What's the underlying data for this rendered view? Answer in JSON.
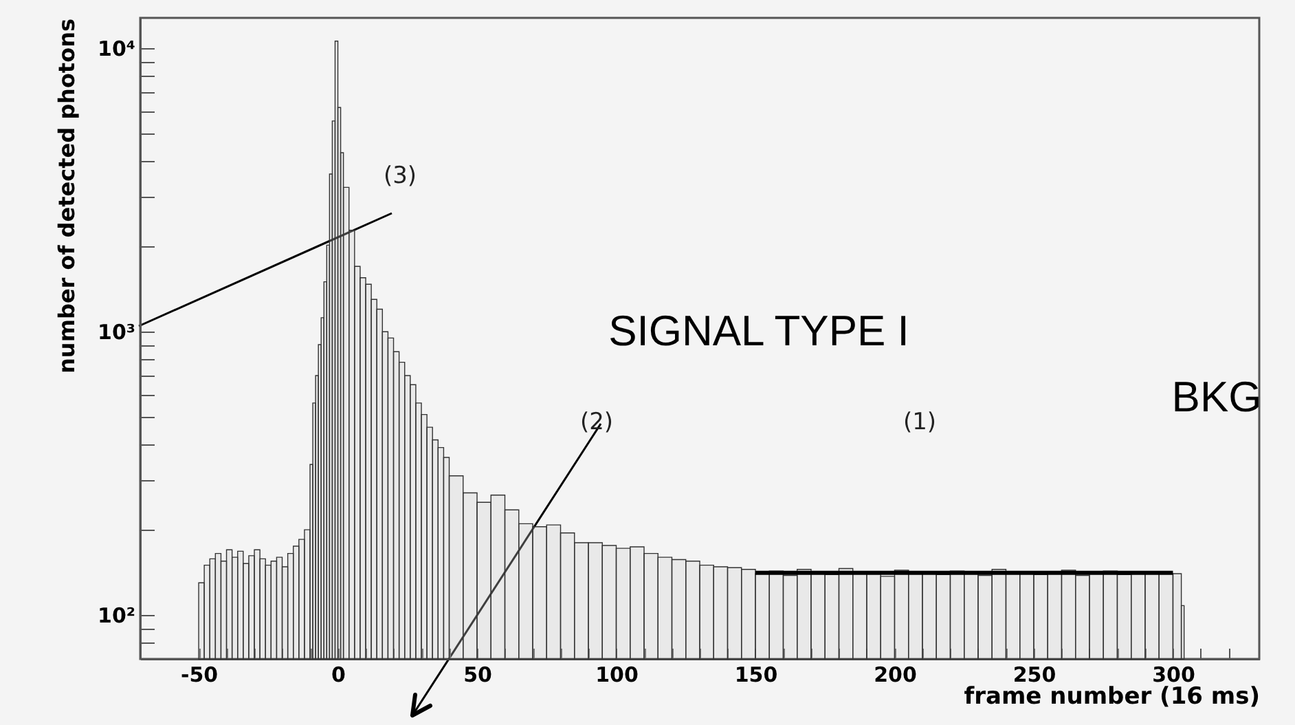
{
  "chart_data": {
    "type": "histogram",
    "xlabel": "frame number (16 ms)",
    "ylabel": "number of detected photons",
    "log": "y",
    "xlim": [
      -71,
      331
    ],
    "ylim": [
      70,
      12800
    ],
    "xticks": [
      -50,
      {
        "value": -40,
        "label": null
      },
      {
        "value": -30,
        "label": null
      },
      {
        "value": -20,
        "label": null
      },
      {
        "value": -10,
        "label": null
      },
      0,
      {
        "value": 10,
        "label": null
      },
      {
        "value": 20,
        "label": null
      },
      {
        "value": 30,
        "label": null
      },
      {
        "value": 40,
        "label": null
      },
      50,
      {
        "value": 60,
        "label": null
      },
      {
        "value": 70,
        "label": null
      },
      {
        "value": 80,
        "label": null
      },
      {
        "value": 90,
        "label": null
      },
      100,
      {
        "value": 110,
        "label": null
      },
      {
        "value": 120,
        "label": null
      },
      {
        "value": 130,
        "label": null
      },
      {
        "value": 140,
        "label": null
      },
      150,
      {
        "value": 160,
        "label": null
      },
      {
        "value": 170,
        "label": null
      },
      {
        "value": 180,
        "label": null
      },
      {
        "value": 190,
        "label": null
      },
      200,
      {
        "value": 210,
        "label": null
      },
      {
        "value": 220,
        "label": null
      },
      {
        "value": 230,
        "label": null
      },
      {
        "value": 240,
        "label": null
      },
      250,
      {
        "value": 260,
        "label": null
      },
      {
        "value": 270,
        "label": null
      },
      {
        "value": 280,
        "label": null
      },
      {
        "value": 290,
        "label": null
      },
      300,
      {
        "value": 310,
        "label": null
      },
      {
        "value": 320,
        "label": null
      }
    ],
    "yticks": [
      {
        "value": 80,
        "label": null
      },
      {
        "value": 90,
        "label": null
      },
      {
        "value": 100,
        "label": "10²"
      },
      {
        "value": 200,
        "label": null
      },
      {
        "value": 300,
        "label": null
      },
      {
        "value": 400,
        "label": null
      },
      {
        "value": 500,
        "label": null
      },
      {
        "value": 600,
        "label": null
      },
      {
        "value": 700,
        "label": null
      },
      {
        "value": 800,
        "label": null
      },
      {
        "value": 900,
        "label": null
      },
      {
        "value": 1000,
        "label": "10³"
      },
      {
        "value": 2000,
        "label": null
      },
      {
        "value": 3000,
        "label": null
      },
      {
        "value": 4000,
        "label": null
      },
      {
        "value": 5000,
        "label": null
      },
      {
        "value": 6000,
        "label": null
      },
      {
        "value": 7000,
        "label": null
      },
      {
        "value": 8000,
        "label": null
      },
      {
        "value": 9000,
        "label": null
      },
      {
        "value": 10000,
        "label": "10⁴"
      }
    ],
    "series": [
      {
        "type": "histogram",
        "color": "#333333",
        "bins": [
          -50,
          -48,
          -46,
          -44,
          -42,
          -40,
          -38,
          -36,
          -34,
          -32,
          -30,
          -28,
          -26,
          -24,
          -22,
          -20,
          -18,
          -16,
          -14,
          -12,
          -10,
          -9,
          -8,
          -7,
          -6,
          -5,
          -4,
          -3,
          -2,
          -1,
          0,
          1,
          2,
          4,
          6,
          8,
          10,
          12,
          14,
          16,
          18,
          20,
          22,
          24,
          26,
          28,
          30,
          32,
          34,
          36,
          38,
          40,
          45,
          50,
          55,
          60,
          65,
          70,
          75,
          80,
          85,
          90,
          95,
          100,
          105,
          110,
          115,
          120,
          125,
          130,
          135,
          140,
          145,
          150,
          155,
          160,
          165,
          170,
          175,
          180,
          185,
          190,
          195,
          200,
          205,
          210,
          215,
          220,
          225,
          230,
          235,
          240,
          245,
          250,
          255,
          260,
          265,
          270,
          275,
          280,
          285,
          290,
          295,
          300,
          303,
          304
        ],
        "values": [
          130,
          150,
          158,
          165,
          155,
          170,
          160,
          168,
          152,
          162,
          170,
          158,
          150,
          155,
          160,
          148,
          165,
          175,
          185,
          200,
          340,
          560,
          700,
          900,
          1120,
          1500,
          2020,
          3600,
          5540,
          10600,
          6180,
          4280,
          3230,
          2280,
          1700,
          1550,
          1470,
          1300,
          1200,
          1000,
          950,
          850,
          780,
          700,
          650,
          560,
          510,
          460,
          415,
          390,
          360,
          310,
          270,
          250,
          265,
          235,
          210,
          205,
          208,
          195,
          180,
          180,
          176,
          172,
          174,
          165,
          160,
          157,
          155,
          150,
          148,
          147,
          145,
          140,
          143,
          138,
          145,
          142,
          139,
          146,
          140,
          141,
          137,
          144,
          140,
          142,
          139,
          143,
          141,
          138,
          145,
          140,
          142,
          139,
          141,
          144,
          138,
          140,
          143,
          139,
          142,
          141,
          140,
          140,
          108
        ]
      },
      {
        "type": "line",
        "color": "#000000",
        "x": [
          150,
          300
        ],
        "values": [
          141,
          141
        ]
      }
    ],
    "annotations": [
      "(3)",
      "(2)",
      "(1)",
      "SIGNAL TYPE I",
      "BKG"
    ]
  }
}
